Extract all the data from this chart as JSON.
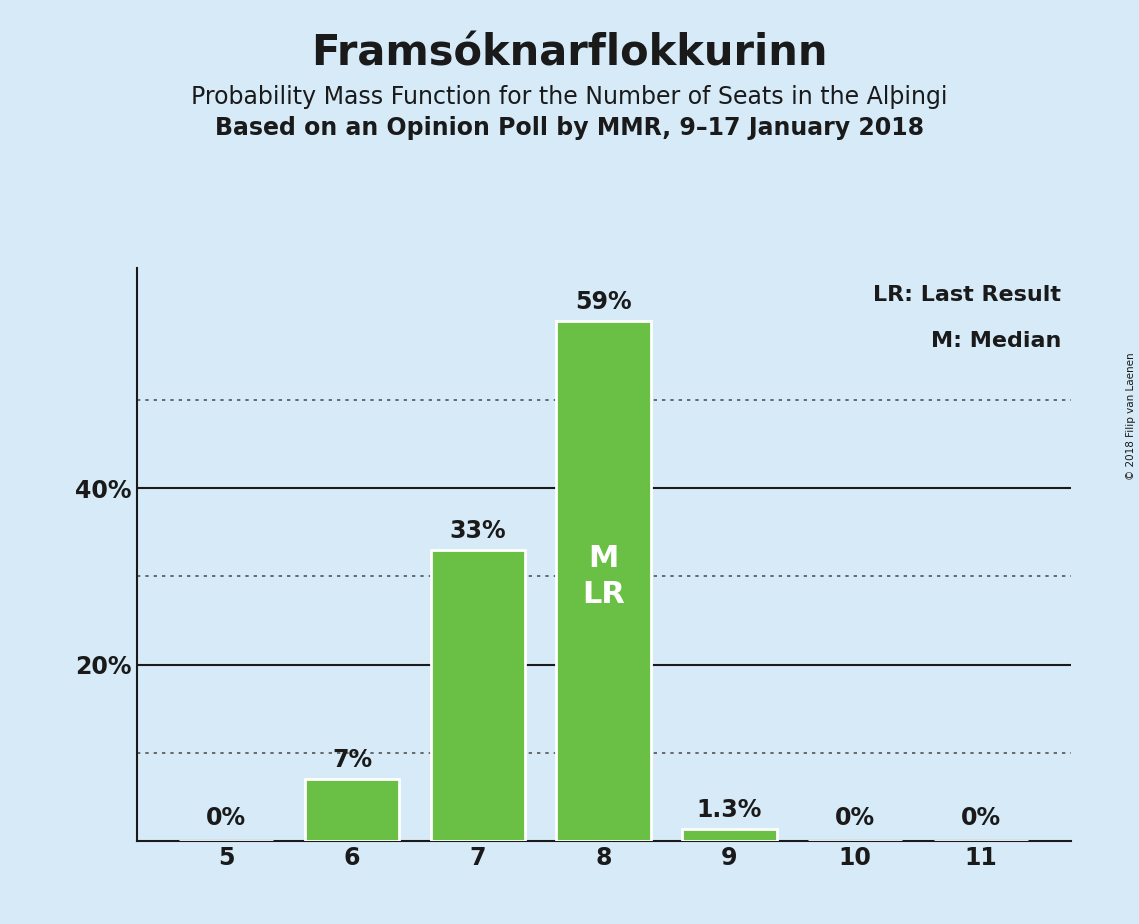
{
  "title": "Framsóknarflokkurinn",
  "subtitle1": "Probability Mass Function for the Number of Seats in the Alþingi",
  "subtitle2": "Based on an Opinion Poll by MMR, 9–17 January 2018",
  "categories": [
    5,
    6,
    7,
    8,
    9,
    10,
    11
  ],
  "values": [
    0.0,
    7.0,
    33.0,
    59.0,
    1.3,
    0.0,
    0.0
  ],
  "bar_color": "#6abf45",
  "bar_edge_color": "#ffffff",
  "background_color": "#d6eaf8",
  "ylim": [
    0,
    65
  ],
  "bar_labels": [
    "0%",
    "7%",
    "33%",
    "59%",
    "1.3%",
    "0%",
    "0%"
  ],
  "legend_lr": "LR: Last Result",
  "legend_m": "M: Median",
  "copyright": "© 2018 Filip van Laenen",
  "dotted_line_color": "#555555",
  "dotted_yticks": [
    10,
    30,
    50
  ],
  "solid_yticks": [
    20,
    40
  ],
  "ml_label": "M\nLR",
  "title_fontsize": 30,
  "subtitle1_fontsize": 17,
  "subtitle2_fontsize": 17,
  "bar_label_fontsize": 17,
  "axis_tick_fontsize": 17,
  "legend_fontsize": 16,
  "ml_label_fontsize": 22
}
